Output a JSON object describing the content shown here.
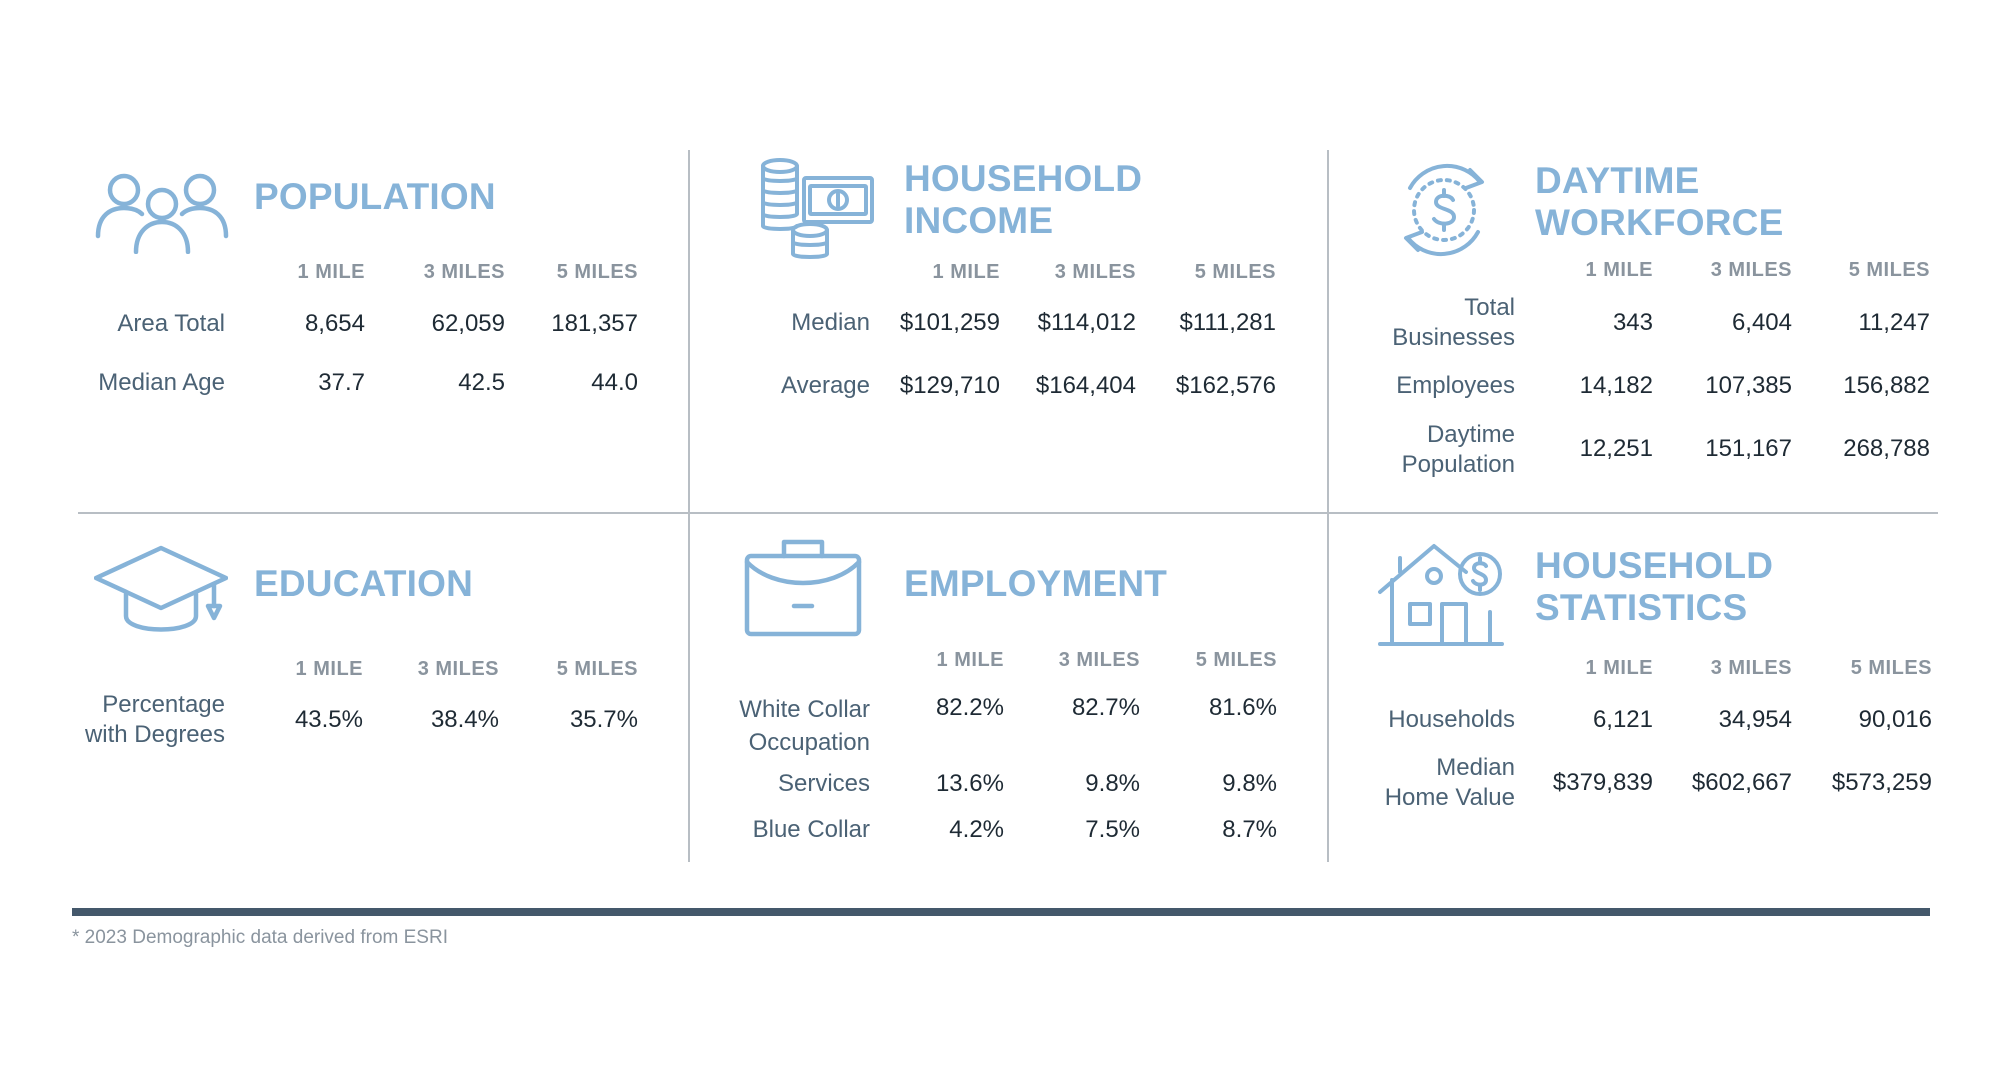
{
  "col_headers": [
    "1 MILE",
    "3 MILES",
    "5 MILES"
  ],
  "sections": {
    "population": {
      "title": "POPULATION",
      "icon": "people-group-icon",
      "rows": [
        {
          "label": "Area Total",
          "values": [
            "8,654",
            "62,059",
            "181,357"
          ]
        },
        {
          "label": "Median Age",
          "values": [
            "37.7",
            "42.5",
            "44.0"
          ]
        }
      ]
    },
    "household_income": {
      "title_line1": "HOUSEHOLD",
      "title_line2": "INCOME",
      "icon": "coins-and-cash-icon",
      "rows": [
        {
          "label": "Median",
          "values": [
            "$101,259",
            "$114,012",
            "$111,281"
          ]
        },
        {
          "label": "Average",
          "values": [
            "$129,710",
            "$164,404",
            "$162,576"
          ]
        }
      ]
    },
    "daytime_workforce": {
      "title_line1": "DAYTIME",
      "title_line2": "WORKFORCE",
      "icon": "dollar-cycle-icon",
      "rows": [
        {
          "label_line1": "Total",
          "label_line2": "Businesses",
          "values": [
            "343",
            "6,404",
            "11,247"
          ]
        },
        {
          "label": "Employees",
          "values": [
            "14,182",
            "107,385",
            "156,882"
          ]
        },
        {
          "label_line1": "Daytime",
          "label_line2": "Population",
          "values": [
            "12,251",
            "151,167",
            "268,788"
          ]
        }
      ]
    },
    "education": {
      "title": "EDUCATION",
      "icon": "graduation-cap-icon",
      "rows": [
        {
          "label_line1": "Percentage",
          "label_line2": "with Degrees",
          "values": [
            "43.5%",
            "38.4%",
            "35.7%"
          ]
        }
      ]
    },
    "employment": {
      "title": "EMPLOYMENT",
      "icon": "briefcase-icon",
      "rows": [
        {
          "label_line1": "White Collar",
          "label_line2": "Occupation",
          "values": [
            "82.2%",
            "82.7%",
            "81.6%"
          ]
        },
        {
          "label": "Services",
          "values": [
            "13.6%",
            "9.8%",
            "9.8%"
          ]
        },
        {
          "label": "Blue Collar",
          "values": [
            "4.2%",
            "7.5%",
            "8.7%"
          ]
        }
      ]
    },
    "household_statistics": {
      "title_line1": "HOUSEHOLD",
      "title_line2": "STATISTICS",
      "icon": "house-dollar-icon",
      "rows": [
        {
          "label": "Households",
          "values": [
            "6,121",
            "34,954",
            "90,016"
          ]
        },
        {
          "label_line1": "Median",
          "label_line2": "Home Value",
          "values": [
            "$379,839",
            "$602,667",
            "$573,259"
          ]
        }
      ]
    }
  },
  "footnote": "* 2023 Demographic data derived from ESRI",
  "colors": {
    "accent": "#86b3d8",
    "text": "#1e2a34",
    "label": "#4b6275",
    "muted": "#8a949e",
    "rule": "#b8bec4",
    "footer_bar": "#44586b"
  }
}
